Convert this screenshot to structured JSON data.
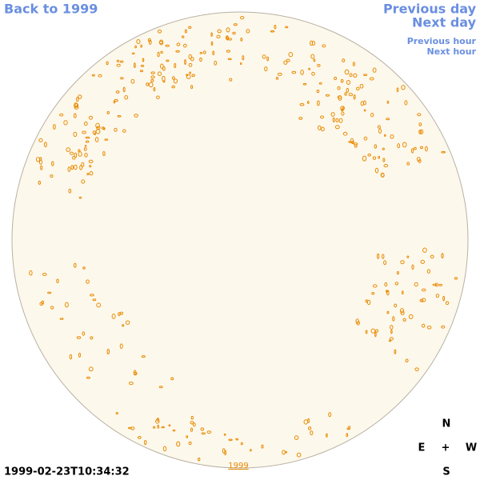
{
  "nav": {
    "back_year": "Back to 1999",
    "previous_day": "Previous day",
    "next_day": "Next day",
    "previous_hour": "Previous hour",
    "next_hour": "Next hour"
  },
  "compass": {
    "north": "N",
    "east": "E",
    "center": "+",
    "west": "W",
    "south": "S"
  },
  "timestamp": "1999-02-23T10:34:32",
  "year_link": "1999"
}
